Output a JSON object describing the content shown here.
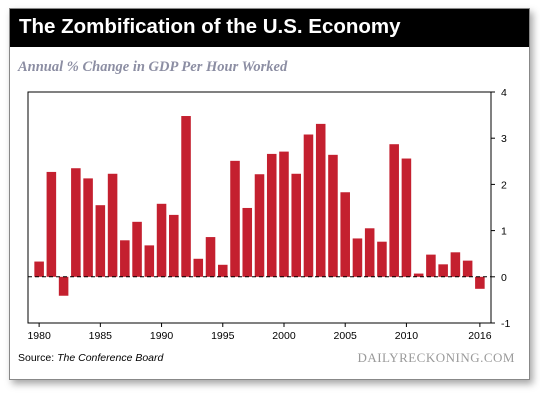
{
  "header": {
    "title": "The Zombification of the U.S. Economy"
  },
  "footer": {
    "source_prefix": "Source: ",
    "source_name": "The Conference Board",
    "brand": "DAILYRECKONING.COM"
  },
  "colors": {
    "bar": "#c4202f",
    "banner": "#000000",
    "subtitle": "#8c8ea3"
  },
  "chart_data": {
    "type": "bar",
    "title": "Annual % Change in GDP Per Hour Worked",
    "xlabel": "",
    "ylabel": "",
    "ylim": [
      -1,
      4
    ],
    "yticks": [
      "-1",
      "0",
      "1",
      "2",
      "3",
      "4"
    ],
    "y_axis_side": "right",
    "grid": false,
    "xticks": [
      "1980",
      "1985",
      "1990",
      "1995",
      "2000",
      "2005",
      "2010",
      "2016"
    ],
    "categories": [
      1980,
      1981,
      1982,
      1983,
      1984,
      1985,
      1986,
      1987,
      1988,
      1989,
      1990,
      1991,
      1992,
      1993,
      1994,
      1995,
      1996,
      1997,
      1998,
      1999,
      2000,
      2001,
      2002,
      2003,
      2004,
      2005,
      2006,
      2007,
      2008,
      2009,
      2010,
      2011,
      2012,
      2013,
      2014,
      2015,
      2016
    ],
    "values": [
      0.33,
      2.27,
      -0.41,
      2.35,
      2.13,
      1.55,
      2.23,
      0.79,
      1.19,
      0.68,
      1.58,
      1.34,
      3.48,
      0.39,
      0.86,
      0.26,
      2.51,
      1.49,
      2.22,
      2.66,
      2.71,
      2.23,
      3.08,
      3.31,
      2.64,
      1.83,
      0.83,
      1.05,
      0.76,
      2.87,
      2.56,
      0.07,
      0.48,
      0.27,
      0.53,
      0.35,
      -0.26
    ]
  }
}
